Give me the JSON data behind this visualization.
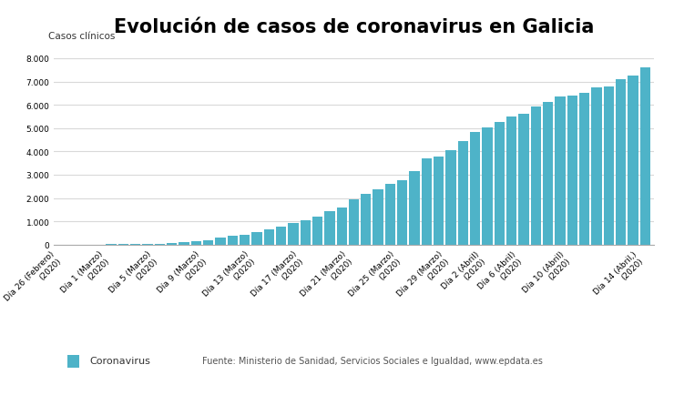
{
  "title": "Evolución de casos de coronavirus en Galicia",
  "ylabel": "Casos clínicos",
  "bar_color": "#4eb3c8",
  "background_color": "#ffffff",
  "legend_label": "Coronavirus",
  "source_text": "Fuente: Ministerio de Sanidad, Servicios Sociales e Igualdad, www.epdata.es",
  "values": [
    3,
    3,
    4,
    5,
    8,
    14,
    18,
    25,
    41,
    60,
    95,
    130,
    198,
    295,
    375,
    430,
    539,
    634,
    759,
    915,
    1045,
    1208,
    1415,
    1580,
    1933,
    2167,
    2369,
    2602,
    2772,
    3139,
    3701,
    3772,
    4061,
    4427,
    4837,
    5036,
    5280,
    5489,
    5634,
    5945,
    6128,
    6358,
    6397,
    6526,
    6758,
    6802,
    7105,
    7252,
    7607
  ],
  "tick_positions": [
    0,
    4,
    8,
    12,
    16,
    20,
    24,
    28,
    32,
    35,
    38,
    42,
    48
  ],
  "tick_labels": [
    "Día 26 (Febrero)\n(2020)",
    "Día 1 (Marzo)\n(2020)",
    "Día 5 (Marzo)\n(2020)",
    "Día 9 (Marzo)\n(2020)",
    "Día 13 (Marzo)\n(2020)",
    "Día 17 (Marzo)\n(2020)",
    "Día 21 (Marzo)\n(2020)",
    "Día 25 (Marzo)\n(2020)",
    "Día 29 (Marzo)\n(2020)",
    "Día 2 (Abril)\n(2020)",
    "Día 6 (Abril)\n(2020)",
    "Día 10 (Abril)\n(2020)",
    "Día 14 (Abril,)\n(2020)"
  ],
  "ylim": [
    0,
    8500
  ],
  "yticks": [
    0,
    1000,
    2000,
    3000,
    4000,
    5000,
    6000,
    7000,
    8000
  ],
  "grid_color": "#d9d9d9",
  "title_fontsize": 15,
  "axis_label_fontsize": 7.5,
  "tick_fontsize": 6.5
}
